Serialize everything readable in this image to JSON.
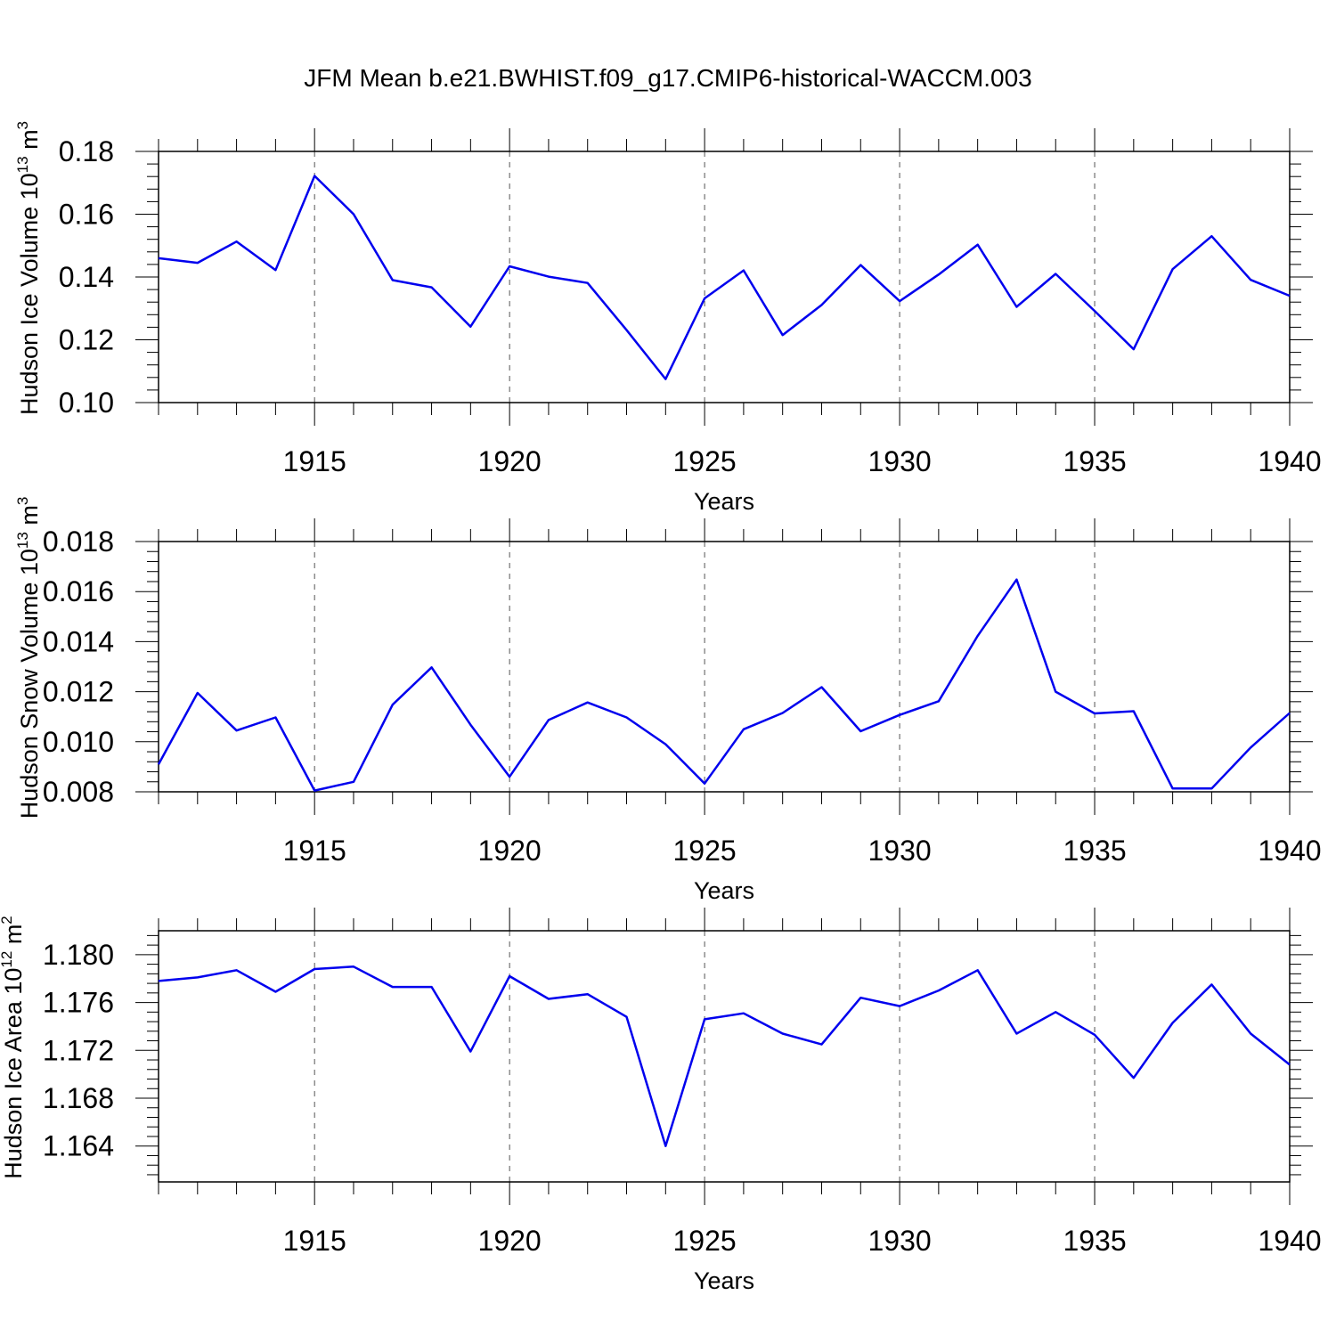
{
  "title": "JFM Mean b.e21.BWHIST.f09_g17.CMIP6-historical-WACCM.003",
  "colors": {
    "line": "#0000ee",
    "axis": "#000000",
    "grid": "#555555"
  },
  "chart_data": [
    {
      "type": "line",
      "ylabel": "Hudson Ice Volume 10",
      "yunit_exp": "13",
      "yunit": "m",
      "yunit_pow": "3",
      "xlabel": "Years",
      "xlim": [
        1911,
        1940
      ],
      "ylim": [
        0.1,
        0.18
      ],
      "xticks": [
        "1915",
        "1920",
        "1925",
        "1930",
        "1935",
        "1940"
      ],
      "yticks": [
        "0.10",
        "0.12",
        "0.14",
        "0.16",
        "0.18"
      ],
      "x": [
        1911,
        1912,
        1913,
        1914,
        1915,
        1916,
        1917,
        1918,
        1919,
        1920,
        1921,
        1922,
        1923,
        1924,
        1925,
        1926,
        1927,
        1928,
        1929,
        1930,
        1931,
        1932,
        1933,
        1934,
        1935,
        1936,
        1937,
        1938,
        1939,
        1940
      ],
      "values": [
        0.146,
        0.1445,
        0.1513,
        0.1422,
        0.1722,
        0.16,
        0.139,
        0.1367,
        0.1242,
        0.1434,
        0.1401,
        0.1381,
        0.1231,
        0.1075,
        0.1332,
        0.1421,
        0.1215,
        0.1311,
        0.1438,
        0.1323,
        0.1408,
        0.1503,
        0.1305,
        0.141,
        0.1292,
        0.117,
        0.1425,
        0.153,
        0.1391,
        0.134
      ]
    },
    {
      "type": "line",
      "ylabel": "Hudson Snow Volume 10",
      "yunit_exp": "13",
      "yunit": "m",
      "yunit_pow": "3",
      "xlabel": "Years",
      "xlim": [
        1911,
        1940
      ],
      "ylim": [
        0.008,
        0.018
      ],
      "xticks": [
        "1915",
        "1920",
        "1925",
        "1930",
        "1935",
        "1940"
      ],
      "yticks": [
        "0.008",
        "0.010",
        "0.012",
        "0.014",
        "0.016",
        "0.018"
      ],
      "x": [
        1911,
        1912,
        1913,
        1914,
        1915,
        1916,
        1917,
        1918,
        1919,
        1920,
        1921,
        1922,
        1923,
        1924,
        1925,
        1926,
        1927,
        1928,
        1929,
        1930,
        1931,
        1932,
        1933,
        1934,
        1935,
        1936,
        1937,
        1938,
        1939,
        1940
      ],
      "values": [
        0.0091,
        0.01195,
        0.01045,
        0.01097,
        0.00805,
        0.0084,
        0.01148,
        0.01297,
        0.01068,
        0.0086,
        0.01087,
        0.01157,
        0.01097,
        0.0099,
        0.00833,
        0.0105,
        0.01115,
        0.01218,
        0.01042,
        0.01107,
        0.01162,
        0.01423,
        0.01648,
        0.012,
        0.01113,
        0.01122,
        0.00813,
        0.00813,
        0.00977,
        0.01115
      ]
    },
    {
      "type": "line",
      "ylabel": "Hudson Ice Area 10",
      "yunit_exp": "12",
      "yunit": "m",
      "yunit_pow": "2",
      "xlabel": "Years",
      "xlim": [
        1911,
        1940
      ],
      "ylim": [
        1.161,
        1.182
      ],
      "xticks": [
        "1915",
        "1920",
        "1925",
        "1930",
        "1935",
        "1940"
      ],
      "yticks": [
        "1.164",
        "1.168",
        "1.172",
        "1.176",
        "1.180"
      ],
      "x": [
        1911,
        1912,
        1913,
        1914,
        1915,
        1916,
        1917,
        1918,
        1919,
        1920,
        1921,
        1922,
        1923,
        1924,
        1925,
        1926,
        1927,
        1928,
        1929,
        1930,
        1931,
        1932,
        1933,
        1934,
        1935,
        1936,
        1937,
        1938,
        1939,
        1940
      ],
      "values": [
        1.1778,
        1.1781,
        1.1787,
        1.1769,
        1.1788,
        1.179,
        1.1773,
        1.1773,
        1.1719,
        1.1782,
        1.1763,
        1.1767,
        1.1748,
        1.164,
        1.1746,
        1.1751,
        1.1734,
        1.1725,
        1.1764,
        1.1757,
        1.177,
        1.1787,
        1.1734,
        1.1752,
        1.1733,
        1.1697,
        1.1743,
        1.1775,
        1.1734,
        1.1708
      ]
    }
  ]
}
